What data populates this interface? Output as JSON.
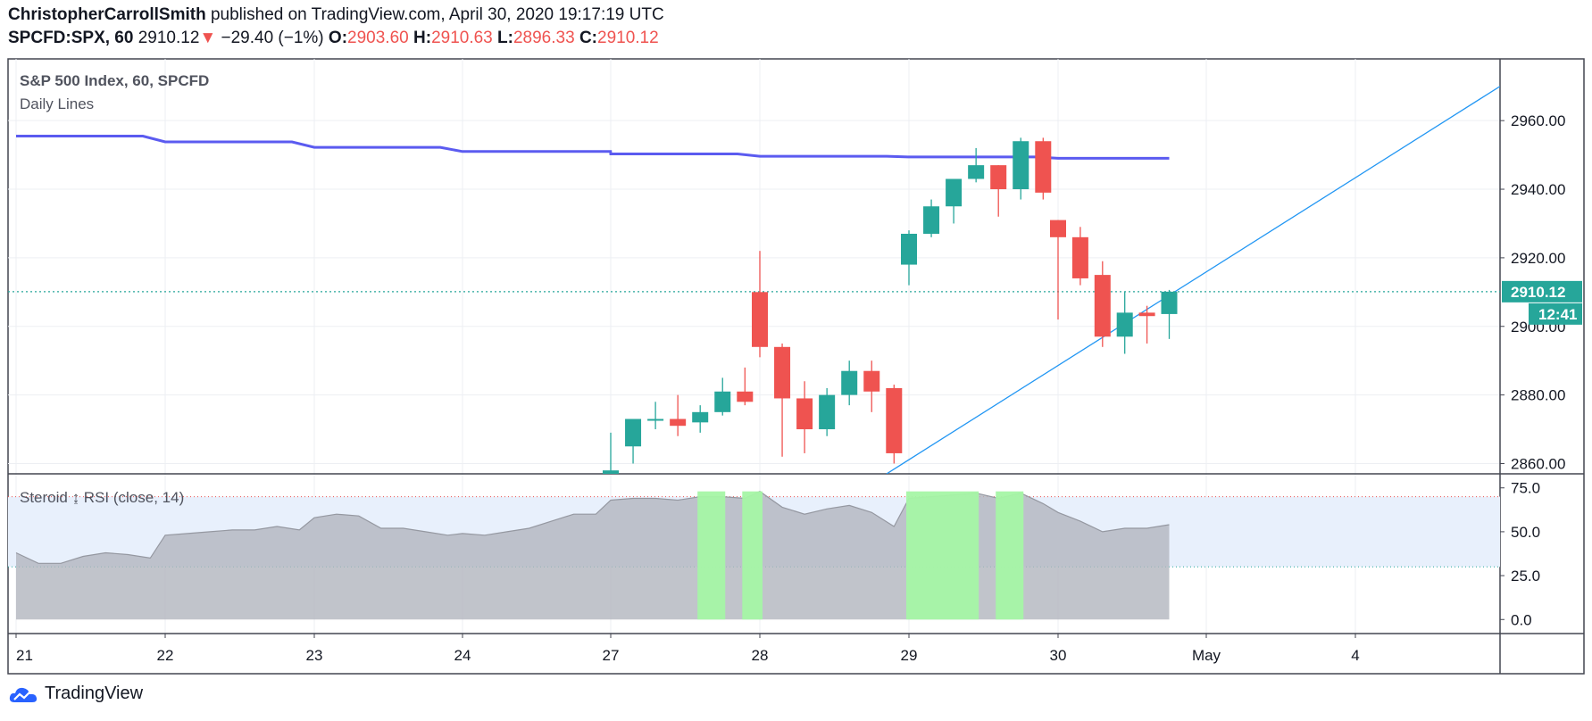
{
  "header": {
    "author": "ChristopherCarrollSmith",
    "published": "published on TradingView.com, April 30, 2020 19:17:19 UTC",
    "symbol": "SPCFD:SPX, 60",
    "last": "2910.12",
    "arrow": "▼",
    "change": "−29.40 (−1%)",
    "o_label": "O:",
    "o_value": "2903.60",
    "h_label": "H:",
    "h_value": "2910.63",
    "l_label": "L:",
    "l_value": "2896.33",
    "c_label": "C:",
    "c_value": "2910.12"
  },
  "footer": {
    "brand": "TradingView"
  },
  "colors": {
    "up": "#26a69a",
    "down": "#ef5350",
    "daily_line": "#5b5bf0",
    "trendline": "#2196f3",
    "rsi_fill": "#b2b5be",
    "rsi_over": "#a5f5a5",
    "rsi_band": "#e8f0fc",
    "price_label_bg": "#26a69a"
  },
  "chart_data": [
    {
      "type": "candlestick",
      "title": "S&P 500 Index, 60, SPCFD",
      "indicator_label": "Daily Lines",
      "x_tick_labels": [
        "21",
        "22",
        "23",
        "24",
        "27",
        "28",
        "29",
        "30",
        "May",
        "4"
      ],
      "y_ticks": [
        2860,
        2880,
        2900,
        2920,
        2940,
        2960
      ],
      "y_tick_labels": [
        "2860.00",
        "2880.00",
        "2900.00",
        "2920.00",
        "2940.00",
        "2960.00"
      ],
      "ylim": [
        2857,
        2978
      ],
      "last_price": 2910.12,
      "last_price_label": "2910.12",
      "countdown_label": "12:41",
      "candles": [
        {
          "t": 27.0,
          "o": 2850,
          "h": 2869,
          "l": 2846,
          "c": 2858
        },
        {
          "t": 27.15,
          "o": 2865,
          "h": 2872,
          "l": 2860,
          "c": 2873
        },
        {
          "t": 27.3,
          "o": 2873,
          "h": 2878,
          "l": 2870,
          "c": 2873
        },
        {
          "t": 27.45,
          "o": 2873,
          "h": 2880,
          "l": 2868,
          "c": 2871
        },
        {
          "t": 27.6,
          "o": 2872,
          "h": 2877,
          "l": 2869,
          "c": 2875
        },
        {
          "t": 27.75,
          "o": 2875,
          "h": 2885,
          "l": 2874,
          "c": 2881
        },
        {
          "t": 27.9,
          "o": 2881,
          "h": 2888,
          "l": 2877,
          "c": 2878
        },
        {
          "t": 28.0,
          "o": 2910,
          "h": 2922,
          "l": 2891,
          "c": 2894
        },
        {
          "t": 28.15,
          "o": 2894,
          "h": 2895,
          "l": 2862,
          "c": 2879
        },
        {
          "t": 28.3,
          "o": 2879,
          "h": 2884,
          "l": 2863,
          "c": 2870
        },
        {
          "t": 28.45,
          "o": 2870,
          "h": 2882,
          "l": 2868,
          "c": 2880
        },
        {
          "t": 28.6,
          "o": 2880,
          "h": 2890,
          "l": 2877,
          "c": 2887
        },
        {
          "t": 28.75,
          "o": 2887,
          "h": 2890,
          "l": 2875,
          "c": 2881
        },
        {
          "t": 28.9,
          "o": 2882,
          "h": 2883,
          "l": 2860,
          "c": 2863
        },
        {
          "t": 29.0,
          "o": 2918,
          "h": 2928,
          "l": 2912,
          "c": 2927
        },
        {
          "t": 29.15,
          "o": 2927,
          "h": 2937,
          "l": 2926,
          "c": 2935
        },
        {
          "t": 29.3,
          "o": 2935,
          "h": 2943,
          "l": 2930,
          "c": 2943
        },
        {
          "t": 29.45,
          "o": 2943,
          "h": 2952,
          "l": 2942,
          "c": 2947
        },
        {
          "t": 29.6,
          "o": 2947,
          "h": 2947,
          "l": 2932,
          "c": 2940
        },
        {
          "t": 29.75,
          "o": 2940,
          "h": 2955,
          "l": 2937,
          "c": 2954
        },
        {
          "t": 29.9,
          "o": 2954,
          "h": 2955,
          "l": 2937,
          "c": 2939
        },
        {
          "t": 30.0,
          "o": 2931,
          "h": 2931,
          "l": 2902,
          "c": 2926
        },
        {
          "t": 30.15,
          "o": 2926,
          "h": 2929,
          "l": 2912,
          "c": 2914
        },
        {
          "t": 30.3,
          "o": 2915,
          "h": 2919,
          "l": 2894,
          "c": 2897
        },
        {
          "t": 30.45,
          "o": 2897,
          "h": 2910,
          "l": 2892,
          "c": 2904
        },
        {
          "t": 30.6,
          "o": 2904,
          "h": 2906,
          "l": 2895,
          "c": 2903
        },
        {
          "t": 30.75,
          "o": 2903.6,
          "h": 2910.63,
          "l": 2896.33,
          "c": 2910.12
        }
      ],
      "daily_line": [
        [
          21.0,
          2955.5
        ],
        [
          21.85,
          2955.5
        ],
        [
          22.0,
          2953.8
        ],
        [
          22.85,
          2953.8
        ],
        [
          23.0,
          2952.2
        ],
        [
          23.85,
          2952.2
        ],
        [
          24.0,
          2951
        ],
        [
          25.85,
          2951
        ],
        [
          27.0,
          2950.3
        ],
        [
          27.85,
          2950.3
        ],
        [
          28.0,
          2949.6
        ],
        [
          28.85,
          2949.6
        ],
        [
          29.0,
          2949.4
        ],
        [
          29.85,
          2949.4
        ],
        [
          30.0,
          2949
        ],
        [
          30.75,
          2949
        ]
      ],
      "trendline": [
        [
          28.85,
          2857
        ],
        [
          32.5,
          2970
        ]
      ]
    },
    {
      "type": "area",
      "title": "Steroid ↨ RSI (close, 14)",
      "y_ticks": [
        0,
        25,
        50,
        75
      ],
      "y_tick_labels": [
        "0.0",
        "25.0",
        "50.0",
        "75.0"
      ],
      "ylim": [
        -8,
        83
      ],
      "upper_band": 70,
      "lower_band": 30,
      "overbought_zones": [
        [
          27.6,
          27.75
        ],
        [
          27.9,
          28.0
        ],
        [
          29.0,
          29.45
        ],
        [
          29.6,
          29.75
        ]
      ],
      "rsi": [
        [
          21.0,
          38
        ],
        [
          21.15,
          32
        ],
        [
          21.3,
          32
        ],
        [
          21.45,
          36
        ],
        [
          21.6,
          38
        ],
        [
          21.75,
          37
        ],
        [
          21.9,
          35
        ],
        [
          22.0,
          48
        ],
        [
          22.15,
          49
        ],
        [
          22.3,
          50
        ],
        [
          22.45,
          51
        ],
        [
          22.6,
          51
        ],
        [
          22.75,
          53
        ],
        [
          22.9,
          51
        ],
        [
          23.0,
          58
        ],
        [
          23.15,
          60
        ],
        [
          23.3,
          59
        ],
        [
          23.45,
          52
        ],
        [
          23.6,
          52
        ],
        [
          23.75,
          50
        ],
        [
          23.9,
          48
        ],
        [
          24.0,
          49
        ],
        [
          24.15,
          48
        ],
        [
          24.3,
          50
        ],
        [
          24.45,
          52
        ],
        [
          24.6,
          56
        ],
        [
          24.75,
          60
        ],
        [
          24.9,
          60
        ],
        [
          27.0,
          68
        ],
        [
          27.15,
          69
        ],
        [
          27.3,
          69
        ],
        [
          27.45,
          68
        ],
        [
          27.6,
          70
        ],
        [
          27.75,
          70
        ],
        [
          27.9,
          69
        ],
        [
          28.0,
          73
        ],
        [
          28.15,
          64
        ],
        [
          28.3,
          60
        ],
        [
          28.45,
          63
        ],
        [
          28.6,
          65
        ],
        [
          28.75,
          61
        ],
        [
          28.9,
          53
        ],
        [
          29.0,
          69
        ],
        [
          29.15,
          70
        ],
        [
          29.3,
          71
        ],
        [
          29.45,
          72
        ],
        [
          29.6,
          69
        ],
        [
          29.75,
          72
        ],
        [
          29.9,
          66
        ],
        [
          30.0,
          61
        ],
        [
          30.15,
          56
        ],
        [
          30.3,
          50
        ],
        [
          30.45,
          52
        ],
        [
          30.6,
          52
        ],
        [
          30.75,
          54
        ]
      ]
    }
  ]
}
